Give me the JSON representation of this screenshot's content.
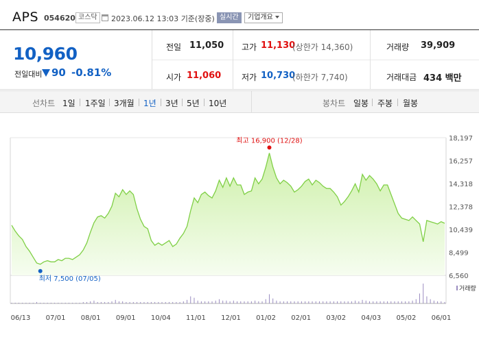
{
  "header": {
    "name": "APS",
    "code": "054620",
    "market": "코스닥",
    "datetime": "2023.06.12 13:03",
    "basis": "기준(장중)",
    "realtime": "실시간",
    "company_info": "기업개요"
  },
  "quote": {
    "price": "10,960",
    "change_label": "전일대비",
    "change": "90",
    "change_rate": "-0.81%",
    "prev_close_label": "전일",
    "prev_close": "11,050",
    "high_label": "고가",
    "high": "11,130",
    "upper_limit": "(상한가 14,360)",
    "volume_label": "거래량",
    "volume": "39,909",
    "open_label": "시가",
    "open": "11,060",
    "low_label": "저가",
    "low": "10,730",
    "lower_limit": "(하한가 7,740)",
    "amount_label": "거래대금",
    "amount": "434 백만"
  },
  "period_bar": {
    "line_label": "선차트",
    "line_items": [
      "1일",
      "1주일",
      "3개월",
      "1년",
      "3년",
      "5년",
      "10년"
    ],
    "active": "1년",
    "candle_label": "봉차트",
    "candle_items": [
      "일봉",
      "주봉",
      "월봉"
    ]
  },
  "chart_data": {
    "type": "area",
    "x_ticks": [
      "06/13",
      "07/01",
      "08/01",
      "09/01",
      "10/04",
      "11/01",
      "12/01",
      "01/02",
      "02/01",
      "03/02",
      "04/03",
      "05/02",
      "06/01"
    ],
    "y_ticks": [
      "18,197",
      "16,257",
      "14,318",
      "12,378",
      "10,439",
      "8,499",
      "6,560"
    ],
    "ylim": [
      6560,
      18197
    ],
    "high_annotation": "최고 16,900 (12/28)",
    "low_annotation": "최저 7,500 (07/05)",
    "volume_legend": "거래량",
    "series": [
      {
        "values": [
          10800,
          10300,
          9900,
          9600,
          9000,
          8600,
          8100,
          7600,
          7500,
          7700,
          7800,
          7700,
          7700,
          7900,
          7800,
          8000,
          8000,
          7900,
          8100,
          8300,
          8700,
          9300,
          10200,
          11000,
          11500,
          11600,
          11400,
          11800,
          12400,
          13500,
          13200,
          13800,
          13400,
          13700,
          13400,
          12200,
          11300,
          10700,
          10500,
          9500,
          9100,
          9300,
          9100,
          9300,
          9500,
          9000,
          9200,
          9700,
          10100,
          10700,
          12000,
          13100,
          12700,
          13400,
          13600,
          13300,
          13100,
          13700,
          14600,
          14000,
          14800,
          14100,
          14800,
          14200,
          14200,
          13400,
          13600,
          13700,
          14800,
          14300,
          14700,
          15700,
          16900,
          15700,
          14800,
          14300,
          14600,
          14400,
          14100,
          13600,
          13800,
          14100,
          14500,
          14700,
          14200,
          14600,
          14400,
          14100,
          13900,
          13900,
          13600,
          13200,
          12500,
          12800,
          13200,
          13700,
          14300,
          13600,
          15100,
          14600,
          15000,
          14700,
          14300,
          13700,
          14200,
          14200,
          13400,
          12600,
          11800,
          11400,
          11300,
          11200,
          11500,
          11200,
          10900,
          9400,
          11200,
          11100,
          11000,
          10900,
          11100,
          10960
        ],
        "volume": [
          1,
          1,
          1,
          1,
          1,
          1,
          1,
          2,
          1,
          1,
          1,
          1,
          1,
          1,
          1,
          1,
          1,
          1,
          1,
          1,
          2,
          2,
          3,
          4,
          2,
          2,
          2,
          2,
          3,
          5,
          3,
          3,
          2,
          2,
          2,
          2,
          2,
          2,
          2,
          2,
          2,
          2,
          2,
          2,
          2,
          2,
          2,
          2,
          3,
          5,
          10,
          8,
          4,
          3,
          3,
          3,
          3,
          4,
          6,
          4,
          4,
          3,
          4,
          3,
          3,
          3,
          3,
          3,
          4,
          3,
          3,
          6,
          13,
          7,
          4,
          3,
          3,
          3,
          3,
          3,
          3,
          3,
          3,
          3,
          3,
          3,
          3,
          3,
          3,
          3,
          3,
          3,
          3,
          3,
          3,
          3,
          4,
          3,
          5,
          4,
          3,
          3,
          3,
          3,
          3,
          3,
          3,
          3,
          3,
          3,
          3,
          3,
          4,
          6,
          14,
          28,
          10,
          6,
          4,
          3,
          3,
          2
        ]
      }
    ]
  }
}
